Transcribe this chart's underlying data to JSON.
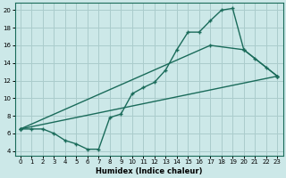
{
  "xlabel": "Humidex (Indice chaleur)",
  "bg_color": "#cce8e8",
  "grid_color": "#aacccc",
  "line_color": "#1a6b5a",
  "xlim": [
    -0.5,
    23.5
  ],
  "ylim": [
    3.5,
    20.8
  ],
  "xticks": [
    0,
    1,
    2,
    3,
    4,
    5,
    6,
    7,
    8,
    9,
    10,
    11,
    12,
    13,
    14,
    15,
    16,
    17,
    18,
    19,
    20,
    21,
    22,
    23
  ],
  "yticks": [
    4,
    6,
    8,
    10,
    12,
    14,
    16,
    18,
    20
  ],
  "series1_x": [
    0,
    1,
    2,
    3,
    4,
    5,
    6,
    7,
    8,
    9,
    10,
    11,
    12,
    13,
    14,
    15,
    16,
    17,
    18,
    19,
    20,
    21,
    22,
    23
  ],
  "series1_y": [
    6.5,
    6.5,
    6.5,
    6.0,
    5.2,
    4.8,
    4.2,
    4.2,
    7.8,
    8.2,
    10.5,
    11.2,
    11.8,
    13.2,
    15.5,
    17.5,
    17.5,
    18.8,
    20.0,
    20.2,
    15.5,
    14.5,
    13.5,
    12.5
  ],
  "series2_x": [
    0,
    23
  ],
  "series2_y": [
    6.5,
    12.5
  ],
  "series3_x": [
    0,
    17,
    20,
    23
  ],
  "series3_y": [
    6.5,
    16.0,
    15.5,
    12.5
  ],
  "xlabel_fontsize": 6.0,
  "tick_fontsize": 5.0
}
